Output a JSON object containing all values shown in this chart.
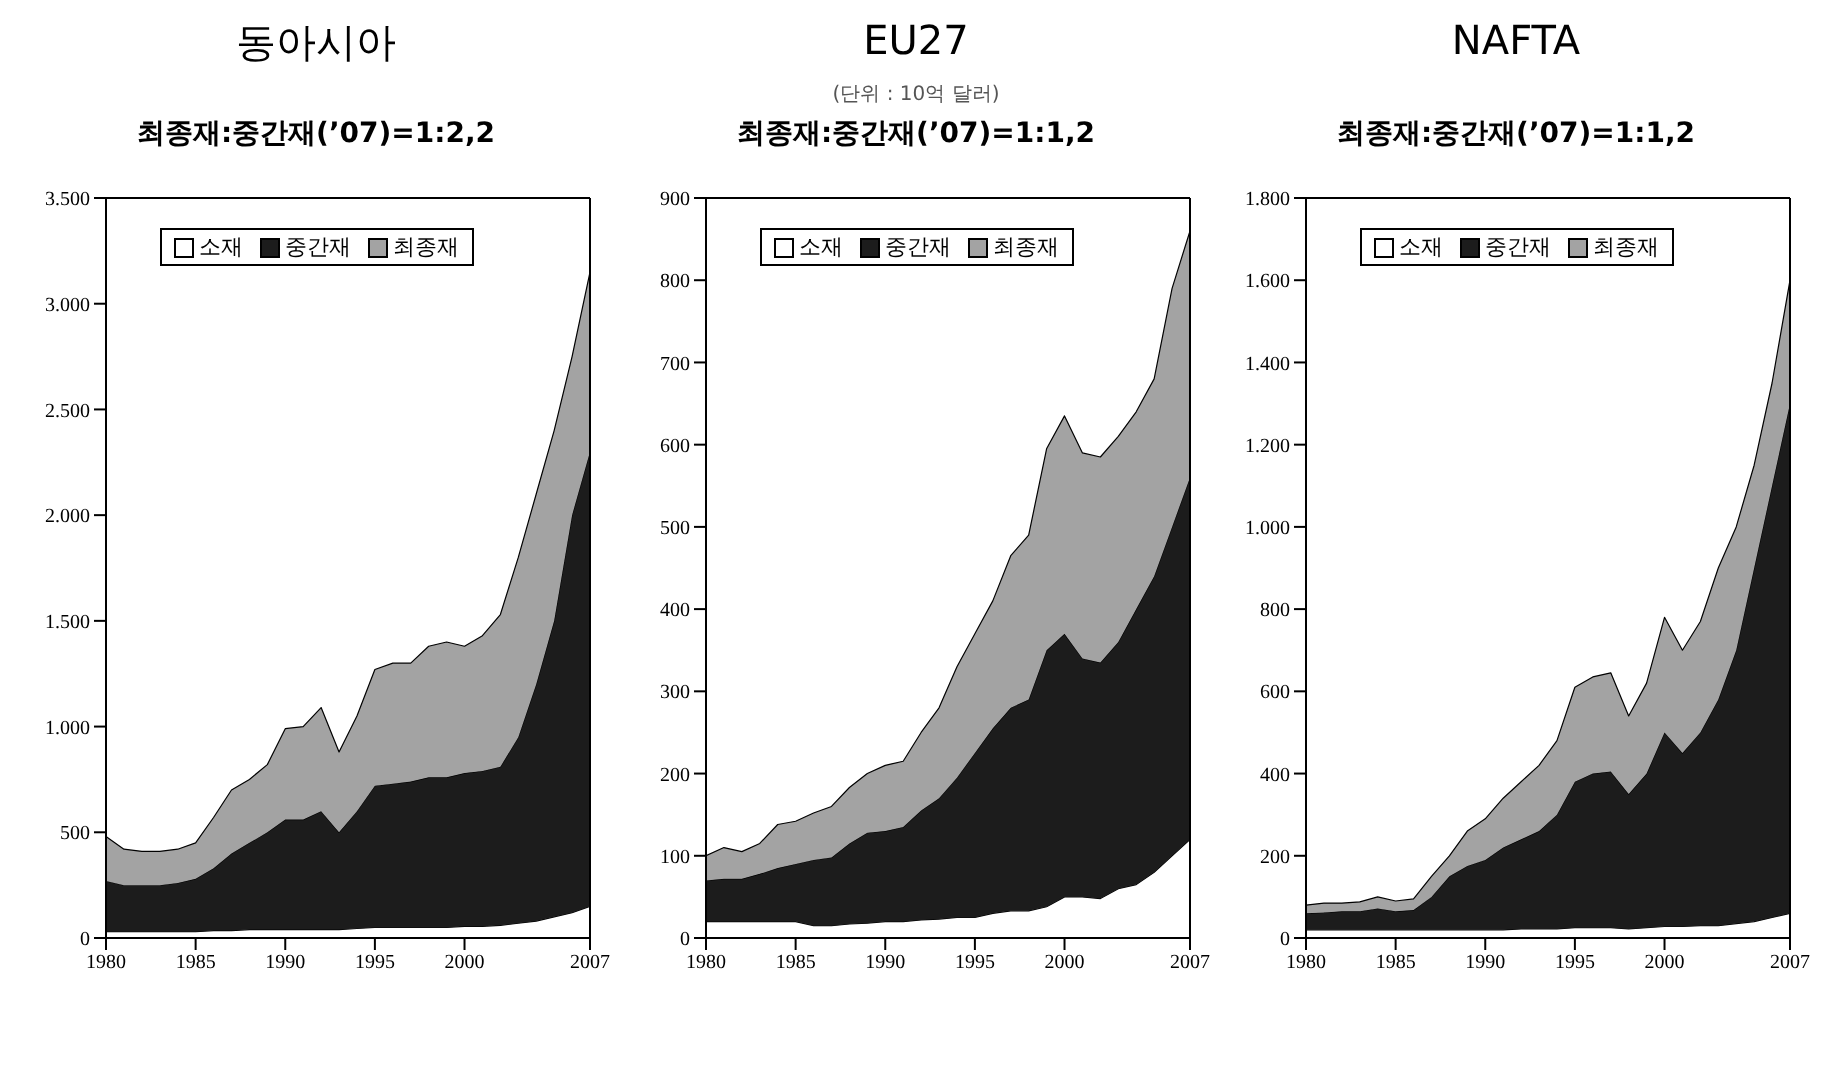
{
  "chart_data": [
    {
      "type": "area",
      "title": "동아시아",
      "subtitle": "최종재:중간재(’07)=1:2,2",
      "stacked": true,
      "legend": "top",
      "x": [
        1980,
        1981,
        1982,
        1983,
        1984,
        1985,
        1986,
        1987,
        1988,
        1989,
        1990,
        1991,
        1992,
        1993,
        1994,
        1995,
        1996,
        1997,
        1998,
        1999,
        2000,
        2001,
        2002,
        2003,
        2004,
        2005,
        2006,
        2007
      ],
      "xlim": [
        1980,
        2007
      ],
      "xticks": [
        1980,
        1985,
        1990,
        1995,
        2000,
        2007
      ],
      "ylim": [
        0,
        3500
      ],
      "yticks": [
        0,
        500,
        {
          "value": 1000,
          "label": "1.000"
        },
        {
          "value": 1500,
          "label": "1.500"
        },
        {
          "value": 2000,
          "label": "2.000"
        },
        {
          "value": 2500,
          "label": "2.500"
        },
        {
          "value": 3000,
          "label": "3.000"
        },
        {
          "value": 3500,
          "label": "3.500"
        }
      ],
      "series": [
        {
          "name": "소재",
          "color": "#ffffff",
          "values": [
            30,
            30,
            30,
            30,
            30,
            30,
            35,
            35,
            40,
            40,
            40,
            40,
            40,
            40,
            45,
            50,
            50,
            50,
            50,
            50,
            55,
            55,
            60,
            70,
            80,
            100,
            120,
            150
          ]
        },
        {
          "name": "중간재",
          "color": "#1c1c1c",
          "values": [
            240,
            220,
            220,
            220,
            230,
            250,
            295,
            365,
            410,
            460,
            520,
            520,
            560,
            460,
            555,
            670,
            680,
            690,
            710,
            710,
            725,
            735,
            750,
            880,
            1120,
            1400,
            1880,
            2150
          ]
        },
        {
          "name": "최종재",
          "color": "#a3a3a3",
          "values": [
            210,
            170,
            160,
            160,
            160,
            170,
            240,
            300,
            300,
            320,
            430,
            440,
            490,
            380,
            450,
            550,
            570,
            560,
            620,
            640,
            600,
            640,
            720,
            850,
            900,
            900,
            750,
            850
          ]
        }
      ]
    },
    {
      "type": "area",
      "title": "EU27",
      "subtitle": "최종재:중간재(’07)=1:1,2",
      "annotations": [
        "(단위 : 10억 달러)"
      ],
      "stacked": true,
      "legend": "top",
      "x": [
        1980,
        1981,
        1982,
        1983,
        1984,
        1985,
        1986,
        1987,
        1988,
        1989,
        1990,
        1991,
        1992,
        1993,
        1994,
        1995,
        1996,
        1997,
        1998,
        1999,
        2000,
        2001,
        2002,
        2003,
        2004,
        2005,
        2006,
        2007
      ],
      "xlim": [
        1980,
        2007
      ],
      "xticks": [
        1980,
        1985,
        1990,
        1995,
        2000,
        2007
      ],
      "ylim": [
        0,
        900
      ],
      "yticks": [
        0,
        100,
        200,
        300,
        400,
        500,
        600,
        700,
        800,
        900
      ],
      "series": [
        {
          "name": "소재",
          "color": "#ffffff",
          "values": [
            20,
            20,
            20,
            20,
            20,
            20,
            15,
            15,
            17,
            18,
            20,
            20,
            22,
            23,
            25,
            25,
            30,
            33,
            33,
            38,
            50,
            50,
            48,
            60,
            65,
            80,
            100,
            120
          ]
        },
        {
          "name": "중간재",
          "color": "#1c1c1c",
          "values": [
            50,
            52,
            52,
            58,
            65,
            70,
            80,
            83,
            98,
            110,
            110,
            115,
            133,
            147,
            170,
            200,
            225,
            247,
            257,
            312,
            320,
            290,
            287,
            300,
            335,
            360,
            400,
            440
          ]
        },
        {
          "name": "최종재",
          "color": "#a3a3a3",
          "values": [
            30,
            38,
            33,
            37,
            53,
            52,
            57,
            62,
            68,
            72,
            80,
            80,
            95,
            110,
            135,
            145,
            155,
            185,
            200,
            245,
            265,
            250,
            250,
            250,
            240,
            240,
            290,
            300
          ]
        }
      ]
    },
    {
      "type": "area",
      "title": "NAFTA",
      "subtitle": "최종재:중간재(’07)=1:1,2",
      "stacked": true,
      "legend": "top",
      "x": [
        1980,
        1981,
        1982,
        1983,
        1984,
        1985,
        1986,
        1987,
        1988,
        1989,
        1990,
        1991,
        1992,
        1993,
        1994,
        1995,
        1996,
        1997,
        1998,
        1999,
        2000,
        2001,
        2002,
        2003,
        2004,
        2005,
        2006,
        2007
      ],
      "xlim": [
        1980,
        2007
      ],
      "xticks": [
        1980,
        1985,
        1990,
        1995,
        2000,
        2007
      ],
      "ylim": [
        0,
        1800
      ],
      "yticks": [
        0,
        200,
        400,
        600,
        800,
        {
          "value": 1000,
          "label": "1.000"
        },
        {
          "value": 1200,
          "label": "1.200"
        },
        {
          "value": 1400,
          "label": "1.400"
        },
        {
          "value": 1600,
          "label": "1.600"
        },
        {
          "value": 1800,
          "label": "1.800"
        }
      ],
      "series": [
        {
          "name": "소재",
          "color": "#ffffff",
          "values": [
            20,
            20,
            20,
            20,
            20,
            20,
            20,
            20,
            20,
            20,
            20,
            20,
            22,
            22,
            22,
            25,
            25,
            25,
            22,
            25,
            28,
            28,
            30,
            30,
            35,
            40,
            50,
            60
          ]
        },
        {
          "name": "중간재",
          "color": "#1c1c1c",
          "values": [
            40,
            42,
            45,
            45,
            52,
            45,
            48,
            80,
            130,
            155,
            170,
            200,
            218,
            238,
            278,
            355,
            375,
            380,
            328,
            375,
            472,
            422,
            470,
            550,
            665,
            860,
            1050,
            1240
          ]
        },
        {
          "name": "최종재",
          "color": "#a3a3a3",
          "values": [
            20,
            23,
            20,
            23,
            28,
            25,
            27,
            50,
            50,
            85,
            100,
            120,
            140,
            160,
            180,
            230,
            235,
            240,
            190,
            220,
            280,
            250,
            270,
            320,
            300,
            250,
            250,
            300
          ]
        }
      ]
    }
  ]
}
